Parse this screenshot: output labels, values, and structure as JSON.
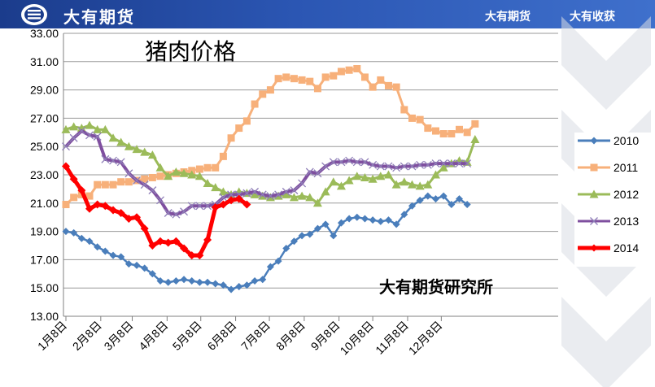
{
  "header": {
    "brand": "大有期货",
    "slogan_left": "大有期货",
    "slogan_right": "大有收获",
    "logo_icon": "dayou-logo-icon",
    "colors": {
      "banner": "#2346a0"
    }
  },
  "watermark": "大有期货研究所",
  "chart_data": {
    "type": "line",
    "title": "猪肉价格",
    "xlabel": "",
    "ylabel": "",
    "ylim": [
      13,
      33
    ],
    "yticks": [
      "13.00",
      "15.00",
      "17.00",
      "19.00",
      "21.00",
      "23.00",
      "25.00",
      "27.00",
      "29.00",
      "31.00",
      "33.00"
    ],
    "xticks": [
      "1月8日",
      "2月8日",
      "3月8日",
      "4月8日",
      "5月8日",
      "6月8日",
      "7月8日",
      "8月8日",
      "9月8日",
      "10月8日",
      "11月8日",
      "12月8日"
    ],
    "x_tick_week": [
      0,
      4.43,
      8.43,
      12.86,
      17.14,
      21.57,
      25.86,
      30.29,
      34.71,
      39,
      43.43,
      47.71
    ],
    "grid": "horizontal",
    "legend_position": "right",
    "series": [
      {
        "name": "2010",
        "color": "#4a7ebb",
        "marker": "diamond",
        "values": [
          19.0,
          18.9,
          18.5,
          18.3,
          17.9,
          17.6,
          17.3,
          17.2,
          16.7,
          16.6,
          16.4,
          16.0,
          15.5,
          15.4,
          15.5,
          15.6,
          15.5,
          15.4,
          15.4,
          15.3,
          15.2,
          14.9,
          15.1,
          15.2,
          15.5,
          15.6,
          16.5,
          16.9,
          17.8,
          18.3,
          18.7,
          18.8,
          19.2,
          19.5,
          18.7,
          19.6,
          19.9,
          20.0,
          19.9,
          19.8,
          19.7,
          19.8,
          19.5,
          20.2,
          20.8,
          21.2,
          21.5,
          21.3,
          21.5,
          20.9,
          21.3,
          20.9
        ]
      },
      {
        "name": "2011",
        "color": "#f7b07a",
        "marker": "square",
        "values": [
          20.9,
          21.4,
          21.6,
          21.5,
          22.3,
          22.3,
          22.3,
          22.5,
          22.5,
          22.6,
          22.7,
          22.8,
          22.9,
          23.0,
          23.1,
          23.2,
          23.3,
          23.4,
          23.5,
          23.5,
          24.3,
          25.6,
          26.3,
          26.8,
          28.0,
          28.7,
          29.0,
          29.8,
          29.9,
          29.8,
          29.7,
          29.6,
          29.1,
          29.9,
          30.0,
          30.3,
          30.4,
          30.5,
          29.9,
          29.2,
          29.7,
          29.3,
          29.2,
          27.6,
          27.0,
          26.9,
          26.3,
          26.1,
          25.9,
          25.9,
          26.2,
          26.0,
          26.6
        ]
      },
      {
        "name": "2012",
        "color": "#9bbb59",
        "marker": "triangle",
        "values": [
          26.2,
          26.4,
          26.3,
          26.5,
          26.2,
          26.2,
          25.6,
          25.3,
          25.0,
          24.8,
          24.6,
          24.4,
          23.5,
          22.9,
          23.2,
          23.1,
          23.0,
          22.9,
          22.4,
          22.1,
          21.8,
          21.6,
          21.8,
          21.7,
          21.6,
          21.5,
          21.4,
          21.5,
          21.6,
          21.4,
          21.5,
          21.4,
          21.0,
          21.8,
          22.5,
          22.2,
          22.6,
          22.9,
          22.8,
          22.7,
          22.9,
          23.0,
          22.3,
          22.5,
          22.3,
          22.2,
          22.3,
          23.0,
          23.5,
          23.8,
          24.0,
          23.9,
          25.5
        ]
      },
      {
        "name": "2013",
        "color": "#7f4f9f",
        "marker": "x",
        "values": [
          25.0,
          25.6,
          26.1,
          25.8,
          25.7,
          24.1,
          24.0,
          23.9,
          23.1,
          22.6,
          22.3,
          21.9,
          21.2,
          20.3,
          20.2,
          20.4,
          20.8,
          20.8,
          20.8,
          20.9,
          21.4,
          21.6,
          21.6,
          21.7,
          21.8,
          21.6,
          21.5,
          21.6,
          21.8,
          21.9,
          22.4,
          23.2,
          23.1,
          23.6,
          23.9,
          23.9,
          24.0,
          23.9,
          23.9,
          23.7,
          23.6,
          23.6,
          23.5,
          23.6,
          23.6,
          23.7,
          23.7,
          23.8,
          23.8,
          23.8,
          23.8,
          23.8
        ]
      },
      {
        "name": "2014",
        "color": "#ff0000",
        "marker": "diamond",
        "values": [
          23.6,
          22.7,
          21.9,
          20.6,
          20.9,
          20.8,
          20.5,
          20.3,
          19.9,
          20.0,
          19.2,
          18.0,
          18.3,
          18.2,
          18.3,
          17.8,
          17.3,
          17.3,
          18.4,
          20.7,
          20.9,
          21.2,
          21.3,
          20.9
        ]
      }
    ]
  }
}
